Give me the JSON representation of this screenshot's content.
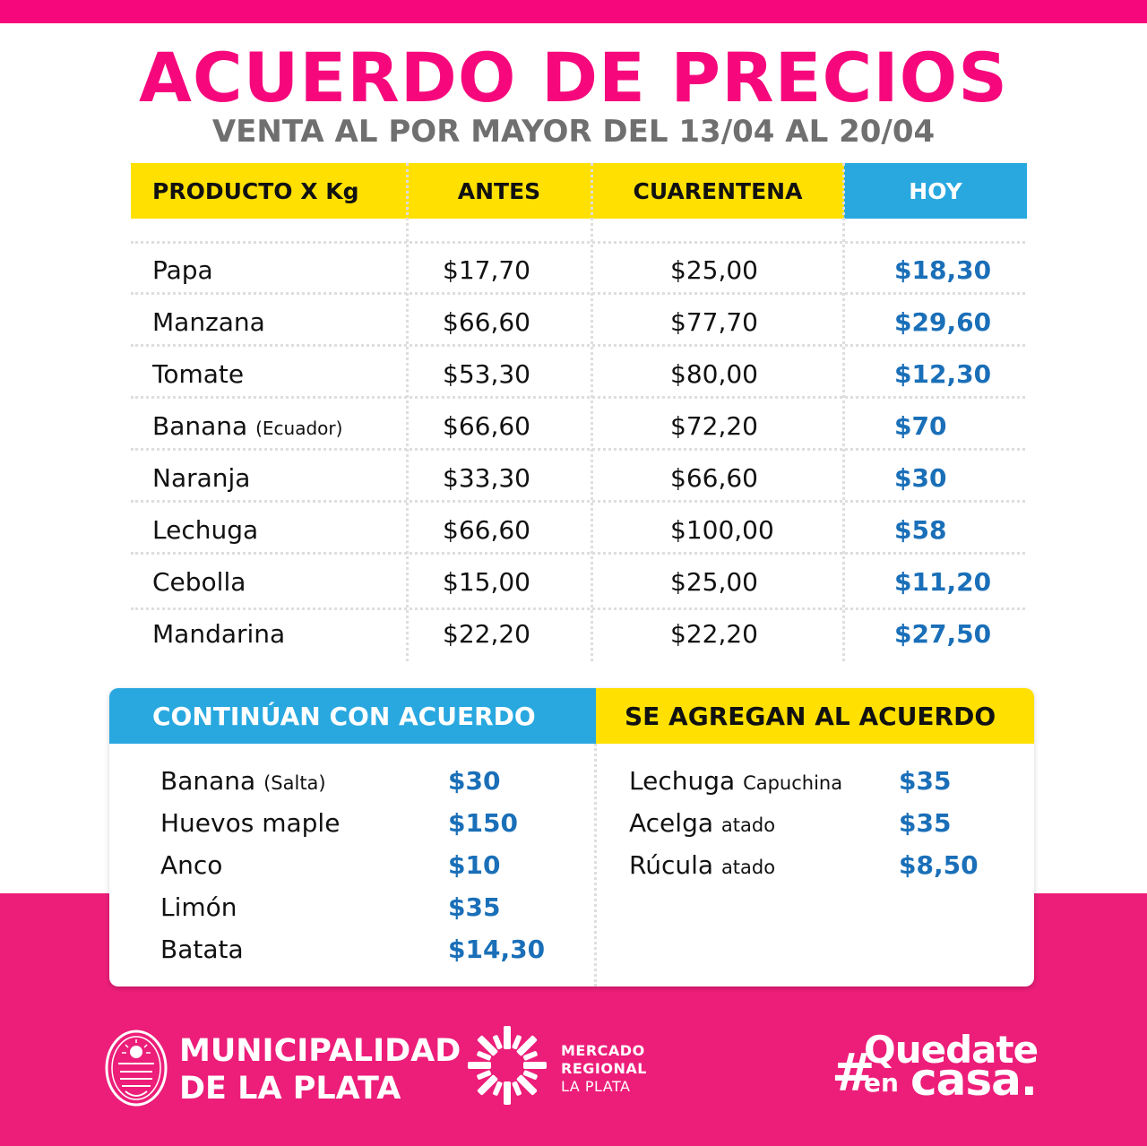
{
  "header": {
    "title": "ACUERDO DE PRECIOS",
    "subtitle": "VENTA AL POR MAYOR DEL 13/04 AL 20/04"
  },
  "table": {
    "columns": [
      "PRODUCTO X Kg",
      "ANTES",
      "CUARENTENA",
      "HOY"
    ],
    "rows": [
      {
        "product": "Papa",
        "note": "",
        "antes": "$17,70",
        "cuarentena": "$25,00",
        "hoy": "$18,30"
      },
      {
        "product": "Manzana",
        "note": "",
        "antes": "$66,60",
        "cuarentena": "$77,70",
        "hoy": "$29,60"
      },
      {
        "product": "Tomate",
        "note": "",
        "antes": "$53,30",
        "cuarentena": "$80,00",
        "hoy": "$12,30"
      },
      {
        "product": "Banana",
        "note": "(Ecuador)",
        "antes": "$66,60",
        "cuarentena": "$72,20",
        "hoy": "$70"
      },
      {
        "product": "Naranja",
        "note": "",
        "antes": "$33,30",
        "cuarentena": "$66,60",
        "hoy": "$30"
      },
      {
        "product": "Lechuga",
        "note": "",
        "antes": "$66,60",
        "cuarentena": "$100,00",
        "hoy": "$58"
      },
      {
        "product": "Cebolla",
        "note": "",
        "antes": "$15,00",
        "cuarentena": "$25,00",
        "hoy": "$11,20"
      },
      {
        "product": "Mandarina",
        "note": "",
        "antes": "$22,20",
        "cuarentena": "$22,20",
        "hoy": "$27,50"
      }
    ]
  },
  "continuan": {
    "title": "CONTINÚAN CON ACUERDO",
    "items": [
      {
        "name": "Banana",
        "note": "(Salta)",
        "price": "$30"
      },
      {
        "name": "Huevos maple",
        "note": "",
        "price": "$150"
      },
      {
        "name": "Anco",
        "note": "",
        "price": "$10"
      },
      {
        "name": "Limón",
        "note": "",
        "price": "$35"
      },
      {
        "name": "Batata",
        "note": "",
        "price": "$14,30"
      }
    ]
  },
  "agregan": {
    "title": "SE AGREGAN AL ACUERDO",
    "items": [
      {
        "name": "Lechuga",
        "note": "Capuchina",
        "price": "$35"
      },
      {
        "name": "Acelga",
        "note": "atado",
        "price": "$35"
      },
      {
        "name": "Rúcula",
        "note": "atado",
        "price": "$8,50"
      }
    ]
  },
  "footer": {
    "municipalidad_line1": "MUNICIPALIDAD",
    "municipalidad_line2a": "DE ",
    "municipalidad_line2b": "LA PLATA",
    "mercado_line1": "MERCADO",
    "mercado_line2": "REGIONAL",
    "mercado_line3": "LA PLATA",
    "hash": "#",
    "hashtag_word1": "Quedate",
    "hashtag_word2": "en",
    "hashtag_word3": "casa."
  },
  "colors": {
    "pink": "#f6087c",
    "pink_bottom": "#ec1e79",
    "yellow": "#ffe000",
    "blue": "#29a8e0",
    "price_blue": "#1a6fb8",
    "gray_subtitle": "#6f6f6f"
  },
  "icons": [
    "municipalidad-seal-icon",
    "mercado-regional-logo-icon"
  ]
}
